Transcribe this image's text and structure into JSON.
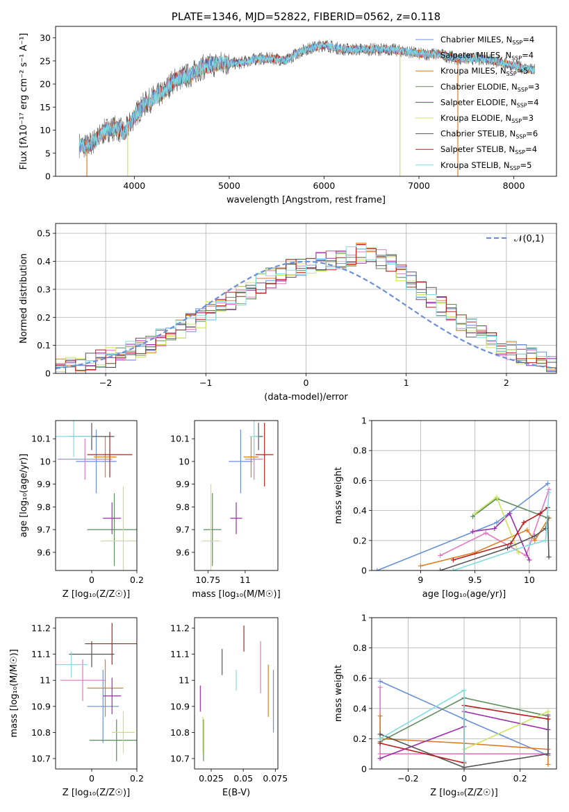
{
  "figure_title": "PLATE=1346, MJD=52822, FIBERID=0562, z=0.118",
  "colors": {
    "Chabrier MILES": "#6a8fd8",
    "Salpeter MILES": "#e377c2",
    "Kroupa MILES": "#e07b20",
    "Chabrier ELODIE": "#5e8c5e",
    "Salpeter ELODIE": "#9a2ea8",
    "Kroupa ELODIE": "#c8e65c",
    "Chabrier STELIB": "#555555",
    "Salpeter STELIB": "#b51c1c",
    "Kroupa STELIB": "#80dbe0"
  },
  "chart_data": [
    {
      "type": "line",
      "title": "PLATE=1346, MJD=52822, FIBERID=0562, z=0.118",
      "xlabel": "wavelength [Angstrom, rest frame]",
      "ylabel": "Flux [fλ10⁻¹⁷ erg cm⁻² s⁻¹ A⁻¹]",
      "xlim": [
        3170,
        8450
      ],
      "ylim": [
        0,
        32.5
      ],
      "xticks": [
        4000,
        5000,
        6000,
        7000,
        8000
      ],
      "yticks": [
        0,
        5,
        10,
        15,
        20,
        25,
        30
      ],
      "grid": false,
      "legend_position": "top-right",
      "spectrum": {
        "x": [
          3420,
          3500,
          3600,
          3700,
          3800,
          3900,
          4000,
          4100,
          4200,
          4300,
          4400,
          4500,
          4600,
          4700,
          4800,
          4900,
          5000,
          5100,
          5200,
          5300,
          5400,
          5500,
          5600,
          5700,
          5800,
          5900,
          6000,
          6100,
          6200,
          6300,
          6400,
          6500,
          6600,
          6700,
          6800,
          6900,
          7000,
          7100,
          7200,
          7300,
          7400,
          7500,
          7600,
          7700,
          7800,
          7900,
          8000,
          8100,
          8200
        ],
        "y": [
          6.8,
          6.5,
          8,
          10,
          10.5,
          9.5,
          13,
          15.5,
          17,
          18,
          20.5,
          21.5,
          22,
          23.5,
          24,
          24.5,
          24.5,
          24.5,
          25,
          25.5,
          25.5,
          25.5,
          25,
          26.5,
          27.5,
          28,
          28.5,
          28,
          27.5,
          27.5,
          27.5,
          27.5,
          27.5,
          27.5,
          27.2,
          27,
          26.5,
          26.5,
          26.5,
          26,
          25.5,
          25.5,
          25.5,
          25.5,
          25,
          24.5,
          24,
          23.5,
          23
        ]
      },
      "series": [
        {
          "name": "Chabrier MILES",
          "nssp": "4"
        },
        {
          "name": "Salpeter MILES",
          "nssp": "4"
        },
        {
          "name": "Kroupa MILES",
          "nssp": "5"
        },
        {
          "name": "Chabrier ELODIE",
          "nssp": "3"
        },
        {
          "name": "Salpeter ELODIE",
          "nssp": "4"
        },
        {
          "name": "Kroupa ELODIE",
          "nssp": "3"
        },
        {
          "name": "Chabrier STELIB",
          "nssp": "6"
        },
        {
          "name": "Salpeter STELIB",
          "nssp": "4"
        },
        {
          "name": "Kroupa STELIB",
          "nssp": "5"
        }
      ]
    },
    {
      "type": "bar",
      "xlabel": "(data-model)/error",
      "ylabel": "Normed distribution",
      "xlim": [
        -2.5,
        2.5
      ],
      "ylim": [
        0,
        0.535
      ],
      "xticks": [
        -2,
        -1,
        0,
        1,
        2
      ],
      "yticks": [
        0.0,
        0.1,
        0.2,
        0.3,
        0.4,
        0.5
      ],
      "grid": true,
      "legend": [
        "𝒩(0,1)"
      ],
      "legend_position": "top-right",
      "bin_width": 0.1,
      "bin_start": -2.5,
      "histogram_mean": [
        0.018,
        0.025,
        0.03,
        0.04,
        0.05,
        0.055,
        0.07,
        0.08,
        0.095,
        0.11,
        0.125,
        0.14,
        0.16,
        0.18,
        0.2,
        0.22,
        0.24,
        0.26,
        0.28,
        0.3,
        0.32,
        0.34,
        0.355,
        0.37,
        0.38,
        0.39,
        0.4,
        0.405,
        0.41,
        0.42,
        0.43,
        0.425,
        0.41,
        0.39,
        0.36,
        0.33,
        0.3,
        0.27,
        0.24,
        0.21,
        0.18,
        0.16,
        0.14,
        0.12,
        0.1,
        0.085,
        0.07,
        0.06,
        0.05,
        0.04
      ]
    },
    {
      "type": "scatter",
      "panel": "age-vs-Z",
      "xlabel": "Z [log₁₀(Z/Z☉)]",
      "ylabel": "age  [log₁₀(age/yr)]",
      "xlim": [
        -0.16,
        0.2
      ],
      "ylim": [
        9.52,
        10.18
      ],
      "xticks": [
        0.0,
        0.2
      ],
      "yticks": [
        9.6,
        9.7,
        9.8,
        9.9,
        10.0,
        10.1
      ]
    },
    {
      "type": "scatter",
      "panel": "age-vs-mass",
      "xlabel": "mass [log₁₀(M/M☉)]",
      "xlim": [
        10.66,
        11.22
      ],
      "ylim": [
        9.52,
        10.18
      ],
      "xticks": [
        10.75,
        11.0
      ],
      "yticks": [
        9.6,
        9.7,
        9.8,
        9.9,
        10.0,
        10.1
      ]
    },
    {
      "type": "line",
      "panel": "mass-weight-vs-age",
      "xlabel": "age  [log₁₀(age/yr)]",
      "ylabel": "mass weight",
      "xlim": [
        8.55,
        10.25
      ],
      "ylim": [
        0,
        1.0
      ],
      "xticks": [
        9.0,
        9.5,
        10.0
      ],
      "yticks": [
        0.0,
        0.2,
        0.4,
        0.6,
        0.8,
        1.0
      ],
      "grid": true
    },
    {
      "type": "scatter",
      "panel": "mass-vs-Z",
      "xlabel": "Z [log₁₀(Z/Z☉)]",
      "ylabel": "mass [log₁₀(M/M☉)]",
      "xlim": [
        -0.16,
        0.2
      ],
      "ylim": [
        10.66,
        11.24
      ],
      "xticks": [
        0.0,
        0.2
      ],
      "yticks": [
        10.7,
        10.8,
        10.9,
        11.0,
        11.1,
        11.2
      ]
    },
    {
      "type": "scatter",
      "panel": "mass-vs-EBV",
      "xlabel": "E(B-V)",
      "xlim": [
        0.012,
        0.077
      ],
      "ylim": [
        10.66,
        11.24
      ],
      "xticks": [
        0.025,
        0.05,
        0.075
      ],
      "yticks": [
        10.7,
        10.8,
        10.9,
        11.0,
        11.1,
        11.2
      ]
    },
    {
      "type": "line",
      "panel": "mass-weight-vs-Z",
      "xlabel": "Z [log₁₀(Z/Z☉)]",
      "ylabel": "mass weight",
      "xlim": [
        -0.33,
        0.33
      ],
      "ylim": [
        0,
        1.0
      ],
      "xticks": [
        -0.2,
        0.0,
        0.2
      ],
      "yticks": [
        0.0,
        0.2,
        0.4,
        0.6,
        0.8,
        1.0
      ],
      "grid": true
    }
  ]
}
